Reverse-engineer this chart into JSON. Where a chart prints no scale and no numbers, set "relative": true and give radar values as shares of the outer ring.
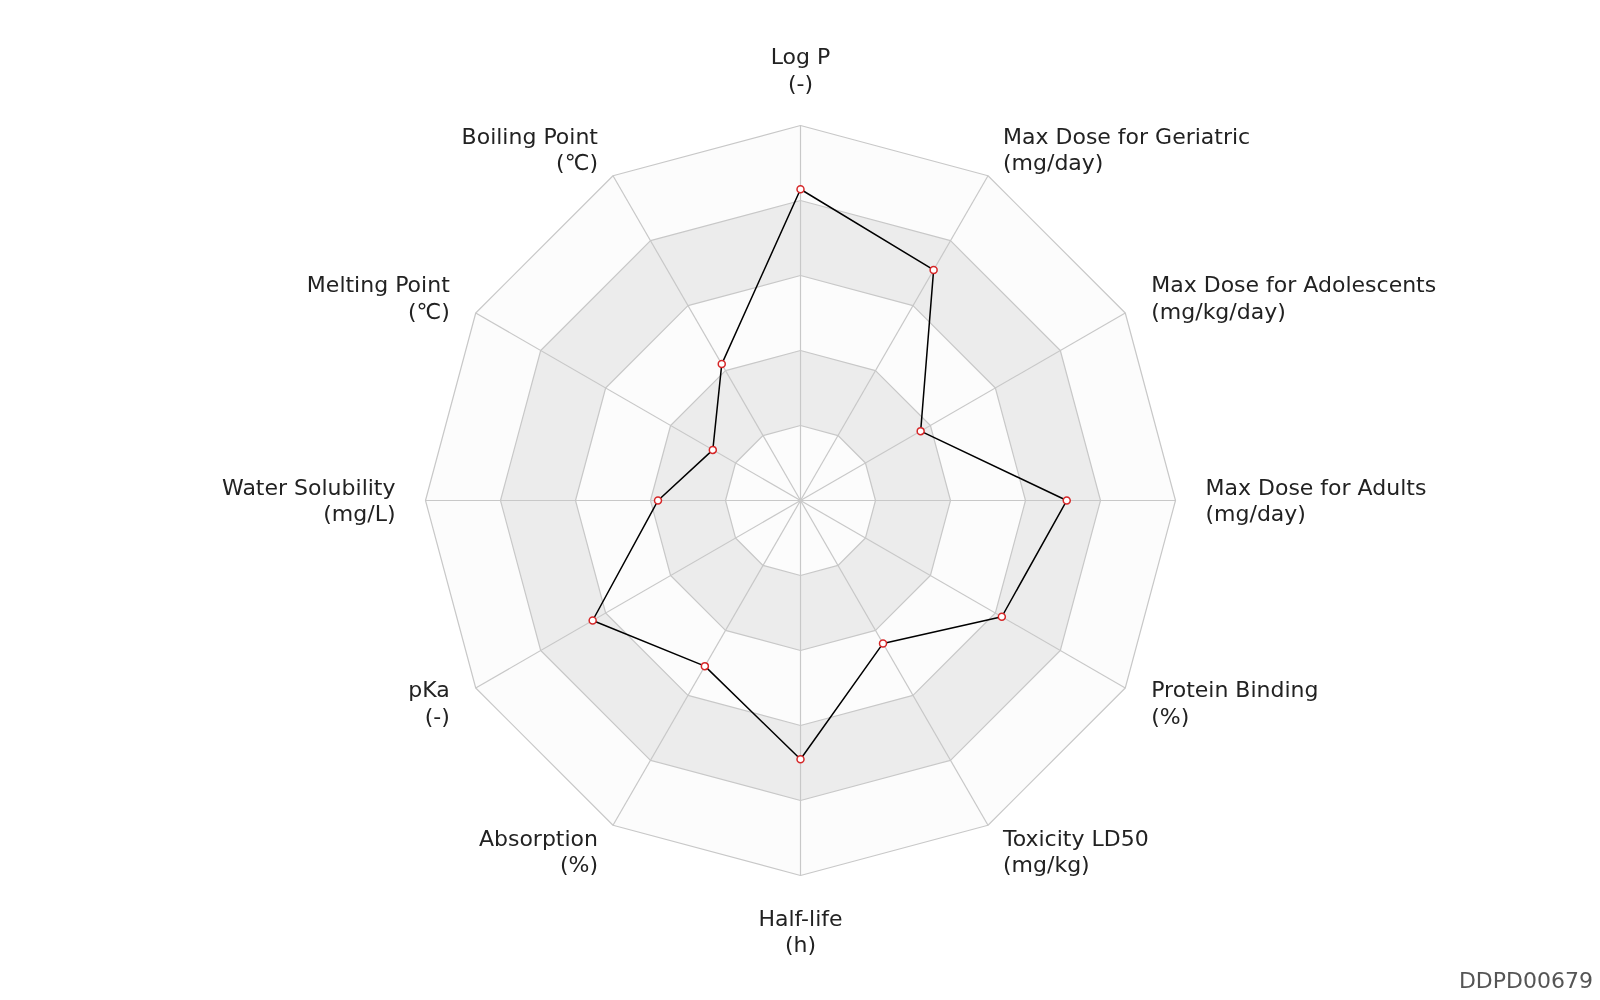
{
  "chart_data": {
    "type": "radar",
    "relative": true,
    "marker": "circle",
    "line_style": "solid",
    "grid": true,
    "categories": [
      "Log P\n(-)",
      "Max Dose for Geriatric\n(mg/day)",
      "Max Dose for Adolescents\n(mg/kg/day)",
      "Max Dose for Adults\n(mg/day)",
      "Protein Binding\n(%)",
      "Toxicity LD50\n(mg/kg)",
      "Half-life\n(h)",
      "Absorption\n(%)",
      "pKa\n(-)",
      "Water Solubility\n(mg/L)",
      "Melting Point\n(℃)",
      "Boiling Point\n(℃)"
    ],
    "series": [
      {
        "color": "#000000",
        "values": [
          0.83,
          0.71,
          0.37,
          0.71,
          0.62,
          0.44,
          0.69,
          0.51,
          0.64,
          0.38,
          0.27,
          0.42
        ]
      }
    ],
    "annotations": [
      "DDPD00679"
    ]
  }
}
